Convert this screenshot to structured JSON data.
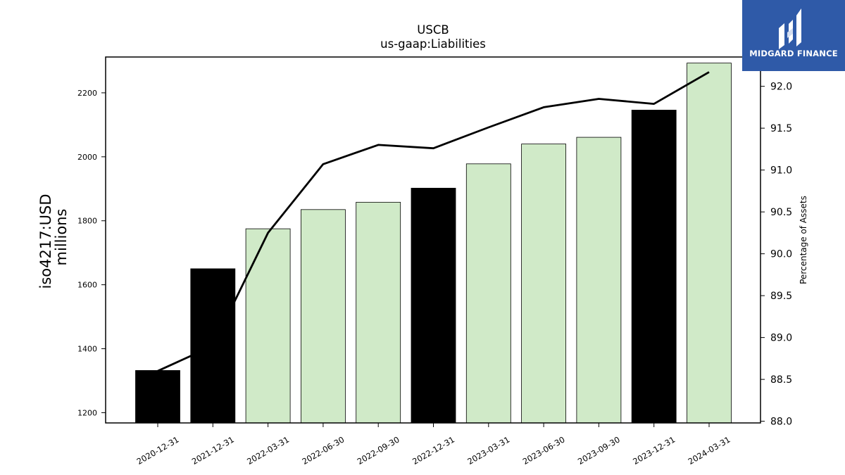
{
  "chart_data": {
    "type": "bar",
    "title": "USCB",
    "subtitle": "us-gaap:Liabilities",
    "ylabel_line1": "iso4217:USD",
    "ylabel_line2": "millions",
    "y2label": "Percentage of Assets",
    "categories": [
      "2020-12-31",
      "2021-12-31",
      "2022-03-31",
      "2022-06-30",
      "2022-09-30",
      "2022-12-31",
      "2023-03-31",
      "2023-06-30",
      "2023-09-30",
      "2023-12-31",
      "2024-03-31"
    ],
    "values": [
      1332,
      1650,
      1775,
      1835,
      1858,
      1902,
      1978,
      2040,
      2061,
      2146,
      2293
    ],
    "bar_colors": [
      "#000000",
      "#000000",
      "#d0eac8",
      "#d0eac8",
      "#d0eac8",
      "#000000",
      "#d0eac8",
      "#d0eac8",
      "#d0eac8",
      "#000000",
      "#d0eac8"
    ],
    "percent_of_assets": [
      88.6,
      88.9,
      90.25,
      91.07,
      91.3,
      91.26,
      91.51,
      91.75,
      91.85,
      91.79,
      92.17
    ],
    "ylim": [
      1168,
      2312
    ],
    "y2lim": [
      87.98,
      92.35
    ],
    "yticks": [
      1200,
      1400,
      1600,
      1800,
      2000,
      2200
    ],
    "y2ticks": [
      88.0,
      88.5,
      89.0,
      89.5,
      90.0,
      90.5,
      91.0,
      91.5,
      92.0
    ],
    "line_color": "#000000",
    "grid": false
  },
  "logo": {
    "text": "MIDGARD FINANCE",
    "background": "#2f5aa8"
  }
}
